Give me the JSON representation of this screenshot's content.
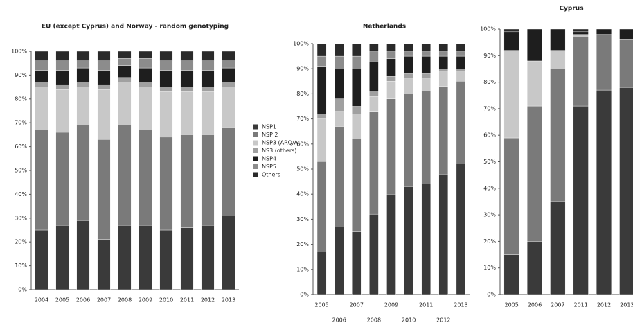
{
  "chart_data": [
    {
      "type": "bar",
      "stacked": true,
      "title": "EU (except Cyprus) and Norway - random genotyping",
      "categories": [
        "2004",
        "2005",
        "2006",
        "2007",
        "2008",
        "2009",
        "2010",
        "2011",
        "2012",
        "2013"
      ],
      "ylim": [
        0,
        100
      ],
      "yticks": [
        {
          "value": 0,
          "label": "0%"
        },
        {
          "value": 10,
          "label": "10%"
        },
        {
          "value": 20,
          "label": "20%"
        },
        {
          "value": 30,
          "label": "30%"
        },
        {
          "value": 40,
          "label": "40%"
        },
        {
          "value": 50,
          "label": "50%"
        },
        {
          "value": 60,
          "label": "60%"
        },
        {
          "value": 70,
          "label": "70%"
        },
        {
          "value": 80,
          "label": "80%"
        },
        {
          "value": 90,
          "label": "90%"
        },
        {
          "value": 100,
          "label": "100%"
        }
      ],
      "legend": "right",
      "series": [
        {
          "name": "NSP1",
          "color": "#3a3a3a",
          "values": [
            25,
            27,
            29,
            21,
            27,
            27,
            25,
            26,
            27,
            31
          ]
        },
        {
          "name": "NSP 2",
          "color": "#7a7a7a",
          "values": [
            42,
            39,
            40,
            42,
            42,
            40,
            39,
            39,
            38,
            37
          ]
        },
        {
          "name": "NSP3 (ARQ/A",
          "color": "#c8c8c8",
          "values": [
            18,
            18,
            16,
            21,
            18,
            18,
            19,
            18,
            18,
            17
          ]
        },
        {
          "name": "NS3 (others)",
          "color": "#a0a0a0",
          "values": [
            2,
            2,
            2,
            2,
            2,
            2,
            2,
            2,
            2,
            2
          ]
        },
        {
          "name": "NSP4",
          "color": "#1e1e1e",
          "values": [
            5,
            6,
            6,
            6,
            5,
            6,
            7,
            7,
            7,
            6
          ]
        },
        {
          "name": "NSP5",
          "color": "#8c8c8c",
          "values": [
            4,
            4,
            3,
            4,
            3,
            4,
            4,
            4,
            4,
            3
          ]
        },
        {
          "name": "Others",
          "color": "#2a2a2a",
          "values": [
            4,
            4,
            4,
            4,
            3,
            3,
            4,
            4,
            4,
            4
          ]
        }
      ]
    },
    {
      "type": "bar",
      "stacked": true,
      "title": "Netherlands",
      "categories": [
        "2005",
        "2006",
        "2007",
        "2008",
        "2009",
        "2010",
        "2011",
        "2012",
        "2013"
      ],
      "ylim": [
        0,
        100
      ],
      "yticks": [
        {
          "value": 0,
          "label": "0%"
        },
        {
          "value": 10,
          "label": "10%"
        },
        {
          "value": 20,
          "label": "20%"
        },
        {
          "value": 30,
          "label": "30%"
        },
        {
          "value": 40,
          "label": "40%"
        },
        {
          "value": 50,
          "label": "50%"
        },
        {
          "value": 60,
          "label": "60%"
        },
        {
          "value": 70,
          "label": "70%"
        },
        {
          "value": 80,
          "label": "80%"
        },
        {
          "value": 90,
          "label": "90%"
        },
        {
          "value": 100,
          "label": "100%"
        }
      ],
      "series": [
        {
          "color": "#3a3a3a",
          "values": [
            17,
            27,
            25,
            32,
            40,
            43,
            44,
            48,
            52
          ]
        },
        {
          "color": "#7a7a7a",
          "values": [
            36,
            40,
            37,
            41,
            38,
            37,
            37,
            35,
            33
          ]
        },
        {
          "color": "#c8c8c8",
          "values": [
            17,
            6,
            10,
            6,
            7,
            6,
            5,
            6,
            4
          ]
        },
        {
          "color": "#a0a0a0",
          "values": [
            2,
            5,
            3,
            2,
            2,
            2,
            2,
            1,
            1
          ]
        },
        {
          "color": "#1e1e1e",
          "values": [
            19,
            12,
            15,
            12,
            7,
            7,
            7,
            5,
            5
          ]
        },
        {
          "color": "#8c8c8c",
          "values": [
            4,
            5,
            5,
            4,
            3,
            2,
            2,
            2,
            2
          ]
        },
        {
          "color": "#2a2a2a",
          "values": [
            5,
            5,
            5,
            3,
            3,
            3,
            3,
            3,
            3
          ]
        }
      ]
    },
    {
      "type": "bar",
      "stacked": true,
      "title": "Cyprus",
      "categories": [
        "2005",
        "2006",
        "2007",
        "2011",
        "2012",
        "2013"
      ],
      "ylim": [
        0,
        100
      ],
      "yticks": [
        {
          "value": 0,
          "label": "0%"
        },
        {
          "value": 10,
          "label": "10%"
        },
        {
          "value": 20,
          "label": "20%"
        },
        {
          "value": 30,
          "label": "30%"
        },
        {
          "value": 40,
          "label": "40%"
        },
        {
          "value": 50,
          "label": "50%"
        },
        {
          "value": 60,
          "label": "60%"
        },
        {
          "value": 70,
          "label": "70%"
        },
        {
          "value": 80,
          "label": "80%"
        },
        {
          "value": 90,
          "label": "90%"
        },
        {
          "value": 100,
          "label": "100%"
        }
      ],
      "series": [
        {
          "color": "#3a3a3a",
          "values": [
            15,
            20,
            35,
            71,
            77,
            78
          ]
        },
        {
          "color": "#7a7a7a",
          "values": [
            44,
            51,
            50,
            26,
            21,
            18
          ]
        },
        {
          "color": "#c8c8c8",
          "values": [
            33,
            17,
            7,
            1,
            0,
            0
          ]
        },
        {
          "color": "#a0a0a0",
          "values": [
            0,
            0,
            0,
            0,
            0,
            0
          ]
        },
        {
          "color": "#1e1e1e",
          "values": [
            7,
            12,
            8,
            1,
            2,
            4
          ]
        },
        {
          "color": "#8c8c8c",
          "values": [
            0,
            0,
            0,
            0,
            0,
            0
          ]
        },
        {
          "color": "#2a2a2a",
          "values": [
            1,
            0,
            0,
            1,
            0,
            0
          ]
        }
      ]
    }
  ]
}
